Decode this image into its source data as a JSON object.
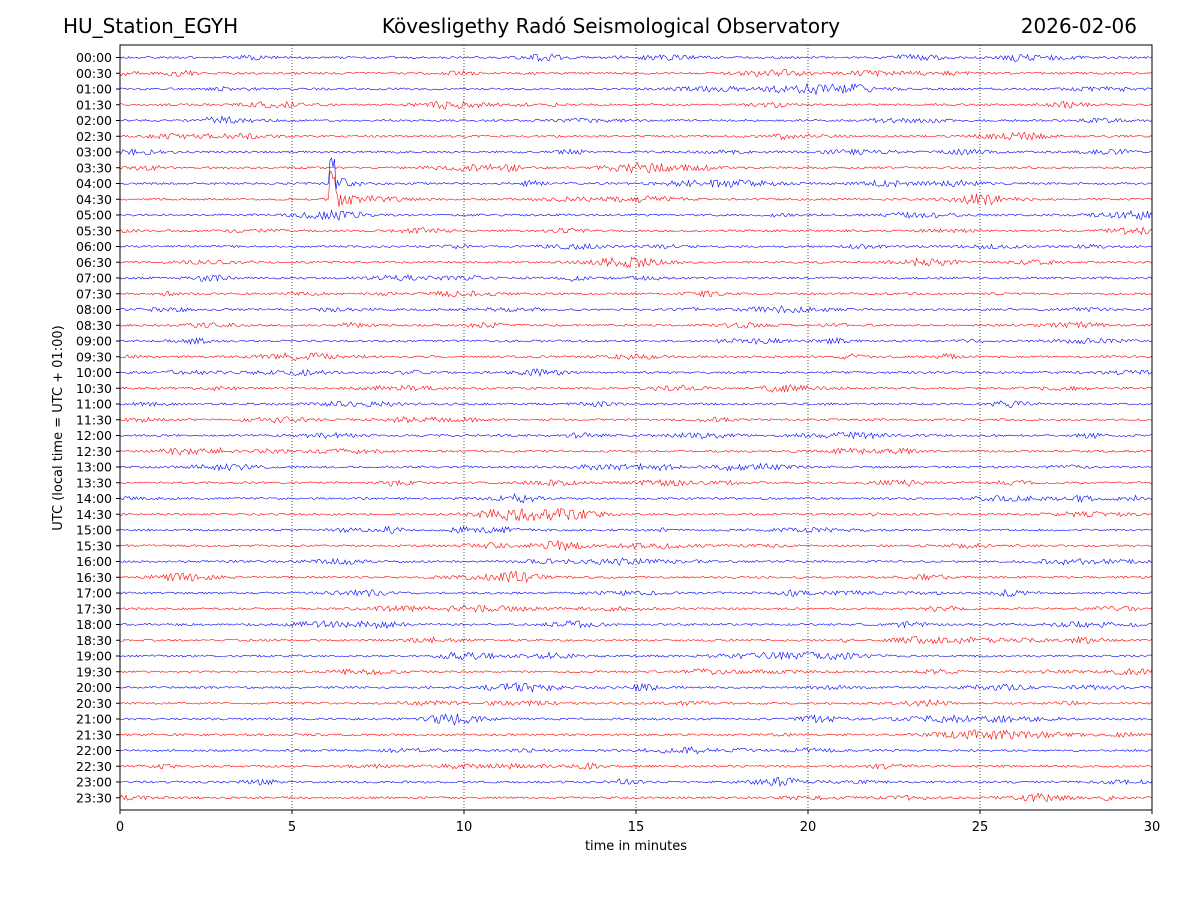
{
  "header": {
    "station": "HU_Station_EGYH",
    "title": "Kövesligethy Radó Seismological Observatory",
    "date": "2026-02-06"
  },
  "colors": {
    "even_trace": "#0000ff",
    "odd_trace": "#ff0000",
    "axis": "#000000"
  },
  "chart_data": {
    "type": "line",
    "title": "Kövesligethy Radó Seismological Observatory",
    "xlabel": "time in minutes",
    "ylabel": "UTC (local time = UTC + 01:00)",
    "xlim": [
      0,
      30
    ],
    "x_ticks": [
      0,
      5,
      10,
      15,
      20,
      25,
      30
    ],
    "vertical_gridlines": [
      5,
      10,
      15,
      20,
      25
    ],
    "row_labels": [
      "00:00",
      "00:30",
      "01:00",
      "01:30",
      "02:00",
      "02:30",
      "03:00",
      "03:30",
      "04:00",
      "04:30",
      "05:00",
      "05:30",
      "06:00",
      "06:30",
      "07:00",
      "07:30",
      "08:00",
      "08:30",
      "09:00",
      "09:30",
      "10:00",
      "10:30",
      "11:00",
      "11:30",
      "12:00",
      "12:30",
      "13:00",
      "13:30",
      "14:00",
      "14:30",
      "15:00",
      "15:30",
      "16:00",
      "16:30",
      "17:00",
      "17:30",
      "18:00",
      "18:30",
      "19:00",
      "19:30",
      "20:00",
      "20:30",
      "21:00",
      "21:30",
      "22:00",
      "22:30",
      "23:00",
      "23:30"
    ],
    "trace_colors": [
      "blue",
      "red"
    ],
    "events": [
      {
        "row": "04:00",
        "minute": 6.15,
        "amplitude": 1.6
      },
      {
        "row": "04:30",
        "minute": 6.15,
        "amplitude": 2.2
      },
      {
        "row": "06:30",
        "minute": 20.3,
        "amplitude": 0.5
      },
      {
        "row": "08:30",
        "minute": 21.7,
        "amplitude": 0.45
      },
      {
        "row": "11:00",
        "minute": 20.4,
        "amplitude": 0.4
      },
      {
        "row": "14:30",
        "minute": 21.8,
        "amplitude": 0.45
      },
      {
        "row": "17:00",
        "minute": 7.0,
        "amplitude": 0.4
      },
      {
        "row": "18:30",
        "minute": 21.0,
        "amplitude": 0.5
      }
    ]
  }
}
